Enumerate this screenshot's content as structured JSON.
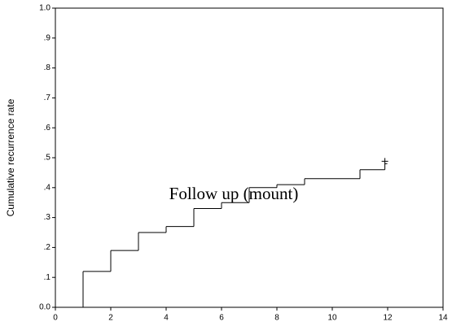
{
  "chart_data": {
    "type": "step",
    "ylabel": "Cumulative recurrence rate",
    "xlabel": "Follow up (mount)",
    "x": [
      0,
      1,
      2,
      3,
      4,
      5,
      6,
      7,
      8,
      9,
      11,
      11.9
    ],
    "values": [
      0,
      0.12,
      0.19,
      0.25,
      0.27,
      0.33,
      0.35,
      0.4,
      0.41,
      0.43,
      0.46,
      0.48
    ],
    "color": "#000000",
    "xlim": [
      0,
      14
    ],
    "xticks": [
      0,
      2,
      4,
      6,
      8,
      10,
      12,
      14
    ],
    "ylim": [
      0,
      1
    ],
    "yticks": [
      {
        "value": 0,
        "label": "0.0"
      },
      {
        "value": 0.1,
        "label": ".1"
      },
      {
        "value": 0.2,
        "label": ".2"
      },
      {
        "value": 0.3,
        "label": ".3"
      },
      {
        "value": 0.4,
        "label": ".4"
      },
      {
        "value": 0.5,
        "label": ".5"
      },
      {
        "value": 0.6,
        "label": ".6"
      },
      {
        "value": 0.7,
        "label": ".7"
      },
      {
        "value": 0.8,
        "label": ".8"
      },
      {
        "value": 0.9,
        "label": ".9"
      },
      {
        "value": 1,
        "label": "1.0"
      }
    ],
    "grid": false
  }
}
